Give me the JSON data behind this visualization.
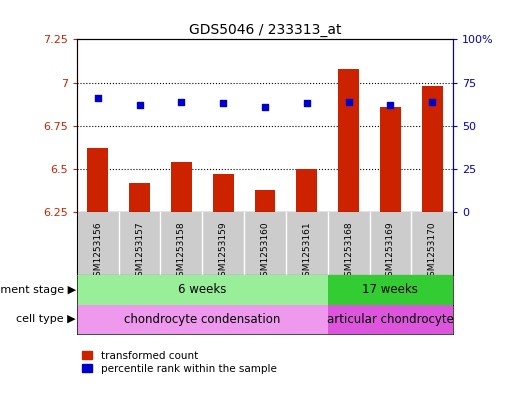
{
  "title": "GDS5046 / 233313_at",
  "samples": [
    "GSM1253156",
    "GSM1253157",
    "GSM1253158",
    "GSM1253159",
    "GSM1253160",
    "GSM1253161",
    "GSM1253168",
    "GSM1253169",
    "GSM1253170"
  ],
  "transformed_count": [
    6.62,
    6.42,
    6.54,
    6.47,
    6.38,
    6.5,
    7.08,
    6.86,
    6.98
  ],
  "percentile_rank": [
    66,
    62,
    64,
    63,
    61,
    63,
    64,
    62,
    64
  ],
  "ylim_left": [
    6.25,
    7.25
  ],
  "ylim_right": [
    0,
    100
  ],
  "yticks_left": [
    6.25,
    6.5,
    6.75,
    7.0,
    7.25
  ],
  "yticks_right": [
    0,
    25,
    50,
    75,
    100
  ],
  "ytick_labels_left": [
    "6.25",
    "6.5",
    "6.75",
    "7",
    "7.25"
  ],
  "ytick_labels_right": [
    "0",
    "25",
    "50",
    "75",
    "100%"
  ],
  "bar_color": "#cc2200",
  "dot_color": "#0000cc",
  "grid_color": "#000000",
  "dev_stage_groups": [
    {
      "label": "6 weeks",
      "start": 0,
      "end": 6,
      "color": "#99ee99"
    },
    {
      "label": "17 weeks",
      "start": 6,
      "end": 9,
      "color": "#33cc33"
    }
  ],
  "cell_type_groups": [
    {
      "label": "chondrocyte condensation",
      "start": 0,
      "end": 6,
      "color": "#ee99ee"
    },
    {
      "label": "articular chondrocyte",
      "start": 6,
      "end": 9,
      "color": "#dd55dd"
    }
  ],
  "dev_stage_label": "development stage",
  "cell_type_label": "cell type",
  "legend_bar_label": "transformed count",
  "legend_dot_label": "percentile rank within the sample",
  "background_color": "#ffffff",
  "tick_area_color": "#cccccc",
  "left_axis_color": "#cc2200",
  "right_axis_color": "#0000cc"
}
